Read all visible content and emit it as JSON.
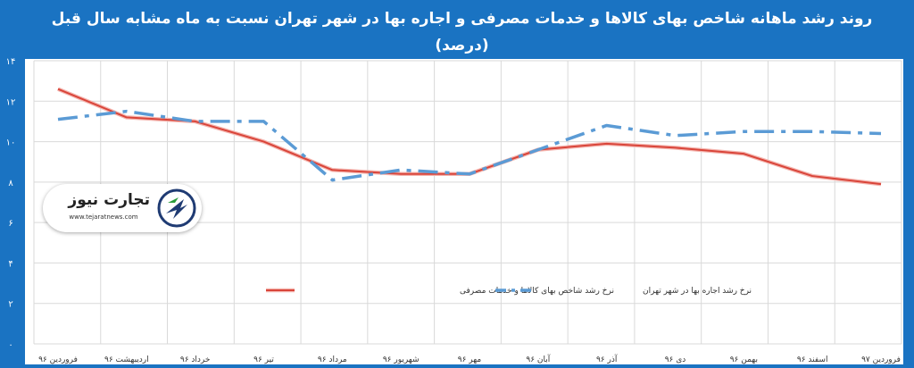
{
  "colors": {
    "background": "#1a73c2",
    "cpi_line": "#d9453a",
    "rent_line": "#5b9bd5",
    "grid": "#d9d9d9"
  },
  "watermark": {
    "brand": "تجارت نیوز",
    "site": "www.tejaratnews.com",
    "icon": "tejarat-logo-icon"
  },
  "chart_data": {
    "type": "line",
    "title": "روند رشد ماهانه شاخص بهای کالاها و خدمات مصرفی و اجاره بها در شهر تهران نسبت به ماه مشابه سال قبل (درصد)",
    "xlabel": "",
    "ylabel": "",
    "ylim": [
      0,
      14
    ],
    "yticks": [
      "۰",
      "۲",
      "۴",
      "۶",
      "۸",
      "۱۰",
      "۱۲",
      "۱۴"
    ],
    "yticks_values": [
      0,
      2,
      4,
      6,
      8,
      10,
      12,
      14
    ],
    "categories": [
      "فروردین ۹۶",
      "اردیبهشت ۹۶",
      "خرداد ۹۶",
      "تیر ۹۶",
      "مرداد ۹۶",
      "شهریور ۹۶",
      "مهر ۹۶",
      "آبان ۹۶",
      "آذر ۹۶",
      "دی ۹۶",
      "بهمن ۹۶",
      "اسفند ۹۶",
      "فروردین ۹۷"
    ],
    "grid": true,
    "legend_position": "center",
    "series": [
      {
        "name": "نرخ رشد شاخص بهای کالاها و خدمات مصرفی",
        "style": "solid",
        "values": [
          12.6,
          11.2,
          11.0,
          10.0,
          8.6,
          8.4,
          8.4,
          9.6,
          9.9,
          9.7,
          9.4,
          8.3,
          7.9
        ]
      },
      {
        "name": "نرخ رشد اجاره بها در شهر تهران",
        "style": "dashdot",
        "values": [
          11.1,
          11.5,
          11.0,
          11.0,
          8.1,
          8.6,
          8.4,
          9.6,
          10.8,
          10.3,
          10.5,
          10.5,
          10.4
        ]
      }
    ]
  }
}
